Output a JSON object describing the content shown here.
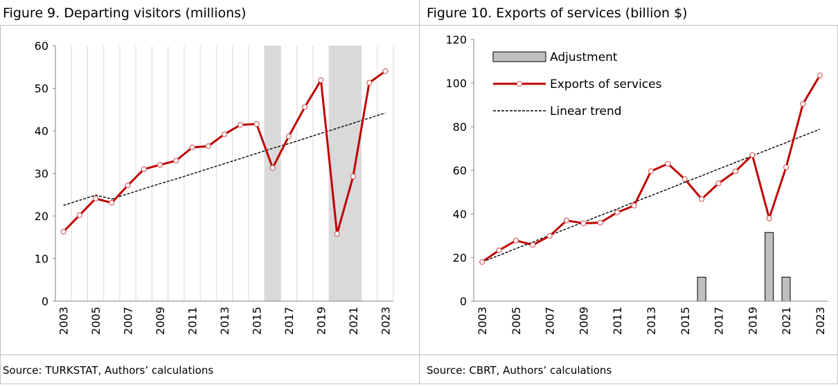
{
  "chart_data": [
    {
      "type": "line",
      "title": "Figure 9. Departing visitors (millions)",
      "source": "Source: TURKSTAT, Authors’ calculations",
      "categories": [
        "2003",
        null,
        "2005",
        null,
        "2007",
        null,
        "2009",
        null,
        "2011",
        null,
        "2013",
        null,
        "2015",
        null,
        "2017",
        null,
        "2019",
        null,
        "2021",
        null,
        "2023"
      ],
      "ylim": [
        0,
        60
      ],
      "yticks": [
        0,
        10,
        20,
        30,
        40,
        50,
        60
      ],
      "grid": "vertical",
      "legend": false,
      "series": [
        {
          "style": "band",
          "color": "#d9d9d9",
          "values": [
            null,
            null,
            null,
            null,
            null,
            null,
            null,
            null,
            null,
            null,
            null,
            null,
            null,
            60,
            null,
            null,
            null,
            60,
            60,
            null,
            null
          ]
        },
        {
          "style": "line",
          "color": "#c00000",
          "values": [
            16.3,
            20.2,
            24.1,
            23.1,
            27.2,
            31.0,
            32.0,
            33.0,
            36.1,
            36.4,
            39.2,
            41.4,
            41.6,
            31.3,
            38.7,
            45.6,
            51.9,
            15.8,
            29.3,
            51.3,
            54.0
          ]
        },
        {
          "style": "dashed",
          "color": "#000000",
          "values": [
            22.5,
            23.7,
            24.9,
            24.0,
            25.2,
            26.4,
            27.6,
            28.7,
            29.9,
            31.1,
            32.3,
            33.5,
            34.7,
            35.9,
            37.0,
            38.2,
            39.4,
            40.6,
            41.8,
            43.0,
            44.2
          ]
        }
      ]
    },
    {
      "type": "line",
      "title": "Figure 10. Exports of services (billion $)",
      "source": "Source: CBRT, Authors’ calculations",
      "categories": [
        "2003",
        null,
        "2005",
        null,
        "2007",
        null,
        "2009",
        null,
        "2011",
        null,
        "2013",
        null,
        "2015",
        null,
        "2017",
        null,
        "2019",
        null,
        "2021",
        null,
        "2023"
      ],
      "ylim": [
        0,
        120
      ],
      "yticks": [
        0,
        20,
        40,
        60,
        80,
        100,
        120
      ],
      "grid": "none",
      "legend": "upper left",
      "series": [
        {
          "name": "Adjustment",
          "style": "bar",
          "color": "#bfbfbf",
          "values": [
            null,
            null,
            null,
            null,
            null,
            null,
            null,
            null,
            null,
            null,
            null,
            null,
            null,
            11,
            null,
            null,
            null,
            31.5,
            11,
            null,
            null
          ]
        },
        {
          "name": "Exports of services",
          "style": "line",
          "color": "#c00000",
          "values": [
            18.0,
            23.3,
            27.8,
            25.8,
            29.9,
            37.0,
            35.7,
            36.0,
            40.7,
            43.8,
            59.6,
            63.0,
            56.0,
            46.8,
            54.0,
            59.5,
            67.0,
            38.0,
            61.4,
            90.5,
            103.5
          ]
        },
        {
          "name": "Linear trend",
          "style": "dashed",
          "color": "#000000",
          "values": [
            18.0,
            21.0,
            24.1,
            27.1,
            30.2,
            33.2,
            36.2,
            39.3,
            42.3,
            45.4,
            48.4,
            51.4,
            54.5,
            57.5,
            60.6,
            63.6,
            66.6,
            69.7,
            72.7,
            75.8,
            78.8
          ]
        }
      ]
    }
  ]
}
